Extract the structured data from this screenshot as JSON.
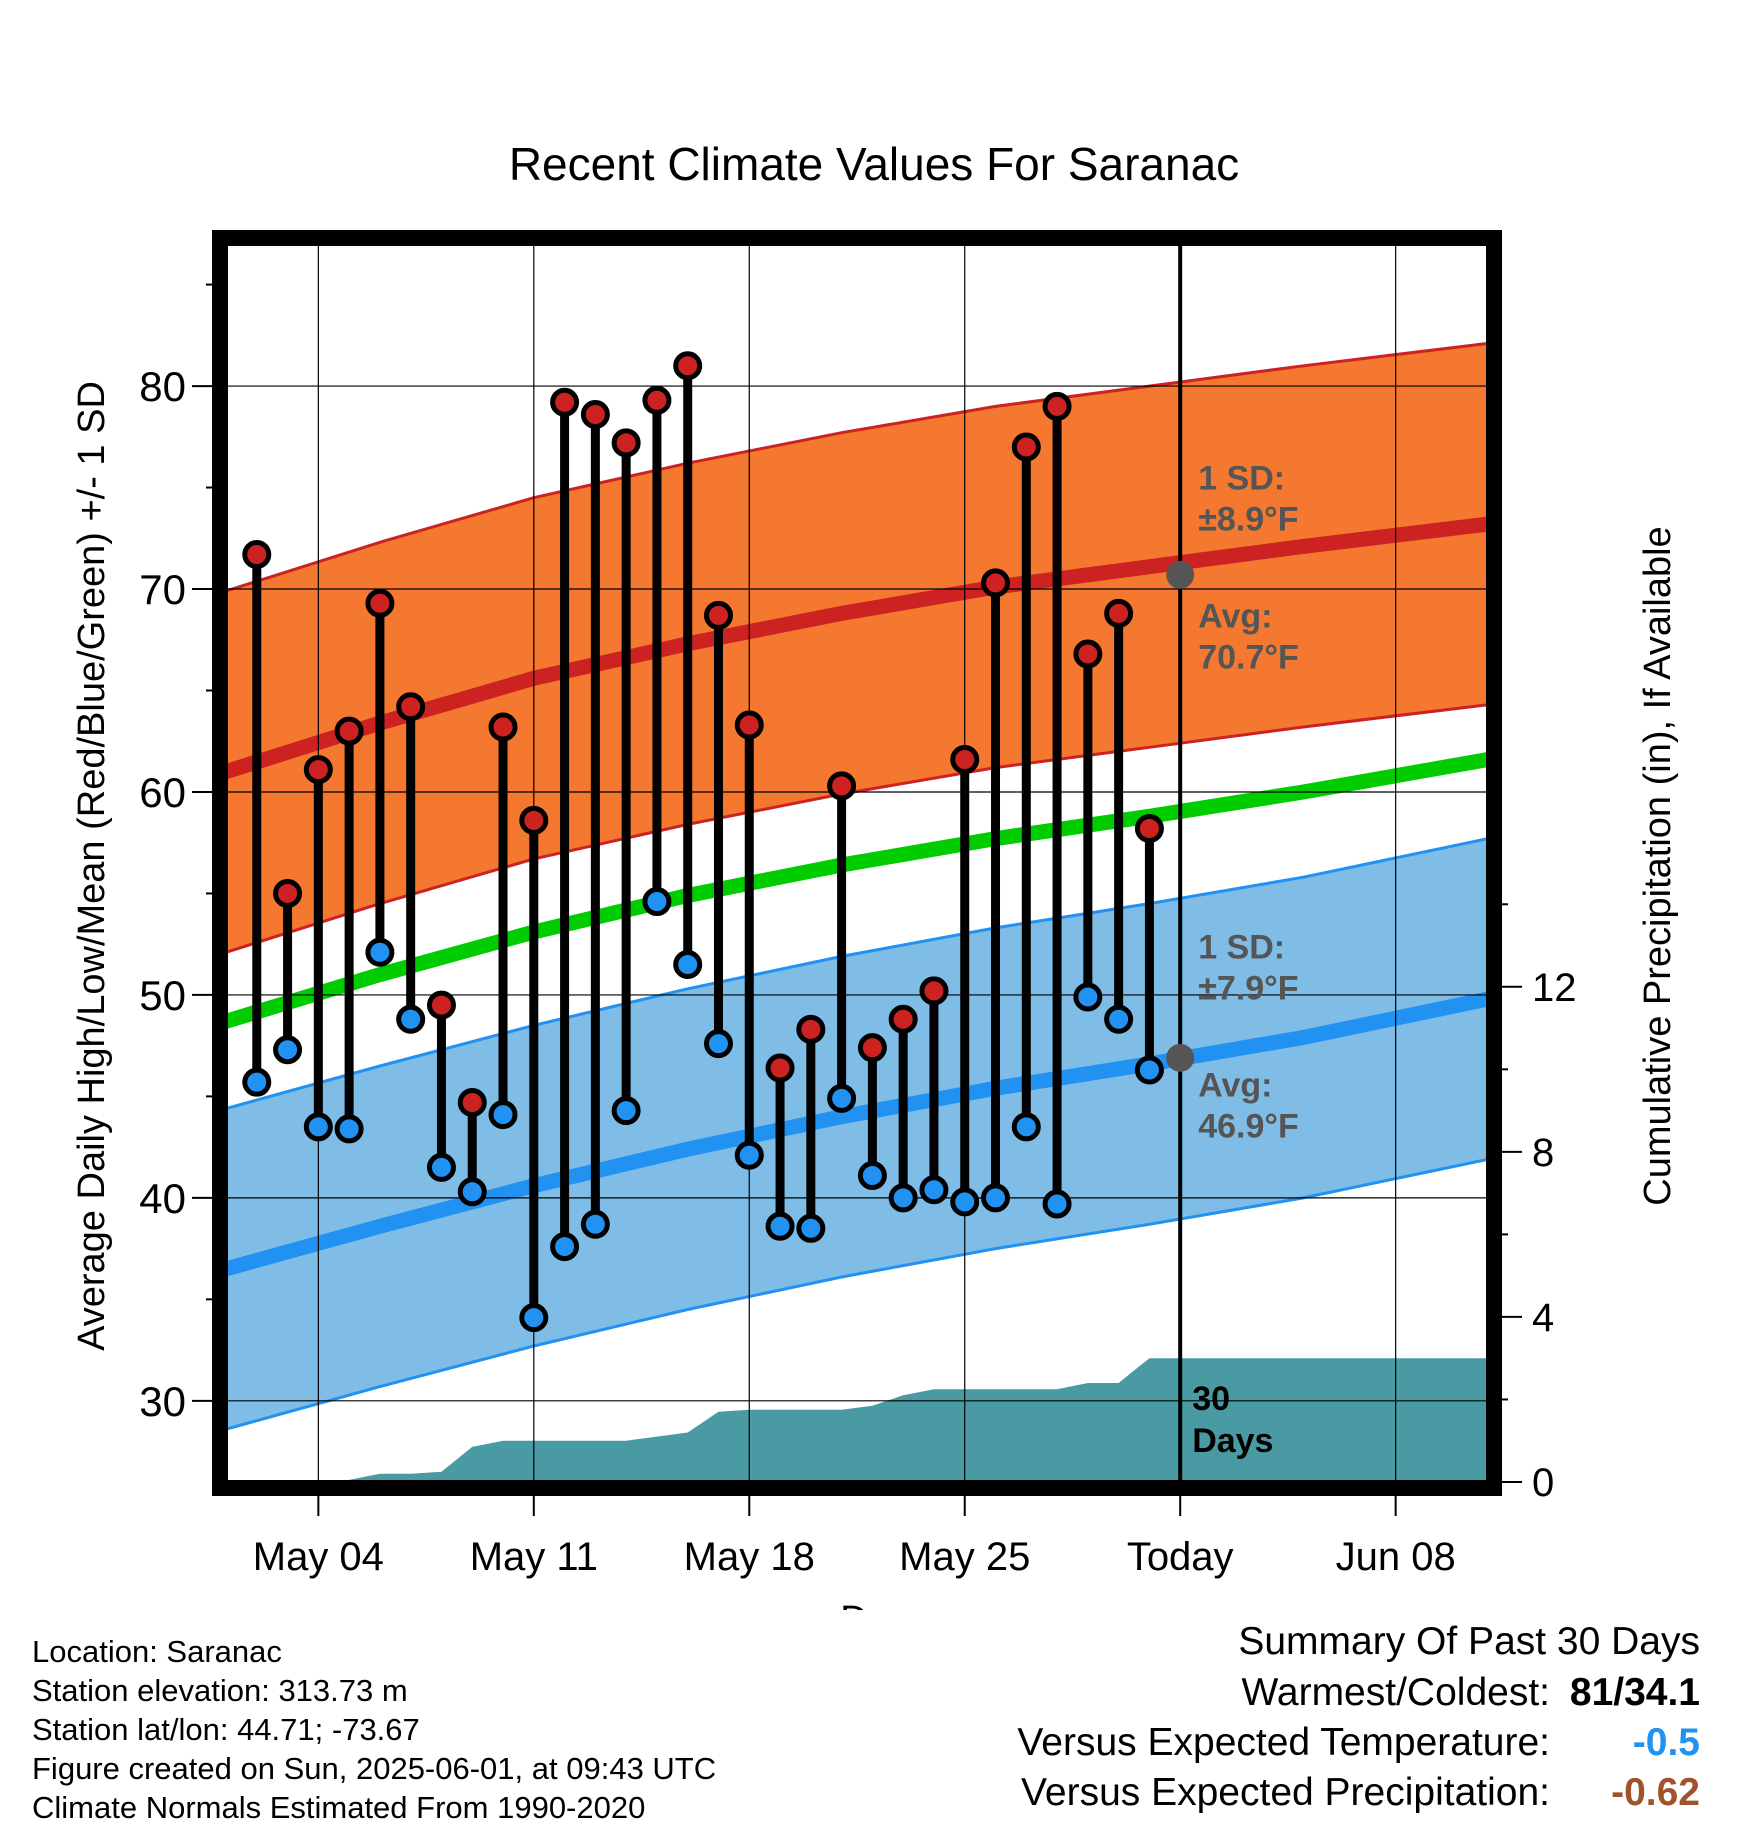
{
  "chart_data": {
    "type": "line",
    "title": "Recent Climate Values For Saranac",
    "xlabel": "Day",
    "ylabel": "Average Daily High/Low/Mean (Red/Blue/Green) +/- 1 SD",
    "y2label": "Cumulative Precipitation (in), If Available",
    "xlim": [
      "2025-05-01",
      "2025-06-11"
    ],
    "ylim": [
      26,
      87
    ],
    "y2lim": [
      0,
      30
    ],
    "x_ticks": [
      "May 04",
      "May 11",
      "May 18",
      "May 25",
      "Today",
      "Jun 08"
    ],
    "x_tick_dates": [
      "2025-05-04",
      "2025-05-11",
      "2025-05-18",
      "2025-05-25",
      "2025-06-01",
      "2025-06-08"
    ],
    "y_ticks": [
      "30",
      "40",
      "50",
      "60",
      "70",
      "80"
    ],
    "y2_ticks": [
      "0",
      "4",
      "8",
      "12"
    ],
    "grid": true,
    "today": "2025-06-01",
    "today_label": [
      "30",
      "Days"
    ],
    "normals": {
      "dates": [
        "2025-05-01",
        "2025-05-06",
        "2025-05-11",
        "2025-05-16",
        "2025-05-21",
        "2025-05-26",
        "2025-05-31",
        "2025-06-05",
        "2025-06-11"
      ],
      "high_mean": [
        61.0,
        63.4,
        65.6,
        67.3,
        68.8,
        70.1,
        71.1,
        72.1,
        73.2
      ],
      "high_sd": 8.9,
      "low_mean": [
        36.5,
        38.6,
        40.6,
        42.4,
        44.0,
        45.4,
        46.6,
        47.9,
        49.8
      ],
      "low_sd": 7.9,
      "mean": [
        48.7,
        51.0,
        53.1,
        54.9,
        56.4,
        57.7,
        58.8,
        60.0,
        61.6
      ]
    },
    "band_labels": {
      "high_sd": [
        "1 SD:",
        "±8.9°F"
      ],
      "high_avg": [
        "Avg:",
        "70.7°F"
      ],
      "low_sd": [
        "1 SD:",
        "±7.9°F"
      ],
      "low_avg": [
        "Avg:",
        "46.9°F"
      ]
    },
    "today_markers": {
      "high": 70.7,
      "low": 46.9
    },
    "series": [
      {
        "name": "High",
        "x": [
          "2025-05-02",
          "2025-05-03",
          "2025-05-04",
          "2025-05-05",
          "2025-05-06",
          "2025-05-07",
          "2025-05-08",
          "2025-05-09",
          "2025-05-10",
          "2025-05-11",
          "2025-05-12",
          "2025-05-13",
          "2025-05-14",
          "2025-05-15",
          "2025-05-16",
          "2025-05-17",
          "2025-05-18",
          "2025-05-19",
          "2025-05-20",
          "2025-05-21",
          "2025-05-22",
          "2025-05-23",
          "2025-05-24",
          "2025-05-25",
          "2025-05-26",
          "2025-05-27",
          "2025-05-28",
          "2025-05-29",
          "2025-05-30",
          "2025-05-31"
        ],
        "values": [
          71.7,
          55.0,
          61.1,
          63.0,
          69.3,
          64.2,
          49.5,
          44.7,
          63.2,
          58.6,
          79.2,
          78.6,
          77.2,
          79.3,
          81.0,
          68.7,
          63.3,
          46.4,
          48.3,
          60.3,
          47.4,
          48.8,
          50.2,
          61.6,
          70.3,
          77.0,
          79.0,
          66.8,
          68.8,
          58.2
        ]
      },
      {
        "name": "Low",
        "x": [
          "2025-05-02",
          "2025-05-03",
          "2025-05-04",
          "2025-05-05",
          "2025-05-06",
          "2025-05-07",
          "2025-05-08",
          "2025-05-09",
          "2025-05-10",
          "2025-05-11",
          "2025-05-12",
          "2025-05-13",
          "2025-05-14",
          "2025-05-15",
          "2025-05-16",
          "2025-05-17",
          "2025-05-18",
          "2025-05-19",
          "2025-05-20",
          "2025-05-21",
          "2025-05-22",
          "2025-05-23",
          "2025-05-24",
          "2025-05-25",
          "2025-05-26",
          "2025-05-27",
          "2025-05-28",
          "2025-05-29",
          "2025-05-30",
          "2025-05-31"
        ],
        "values": [
          45.7,
          47.3,
          43.5,
          43.4,
          52.1,
          48.8,
          41.5,
          40.3,
          44.1,
          34.1,
          37.6,
          38.7,
          44.3,
          54.6,
          51.5,
          47.6,
          42.1,
          38.6,
          38.5,
          44.9,
          41.1,
          40.0,
          40.4,
          39.8,
          40.0,
          43.5,
          39.7,
          49.9,
          48.8,
          46.3
        ]
      }
    ],
    "precipitation": {
      "x": [
        "2025-05-01",
        "2025-05-02",
        "2025-05-03",
        "2025-05-04",
        "2025-05-05",
        "2025-05-06",
        "2025-05-07",
        "2025-05-08",
        "2025-05-09",
        "2025-05-10",
        "2025-05-11",
        "2025-05-12",
        "2025-05-13",
        "2025-05-14",
        "2025-05-15",
        "2025-05-16",
        "2025-05-17",
        "2025-05-18",
        "2025-05-19",
        "2025-05-20",
        "2025-05-21",
        "2025-05-22",
        "2025-05-23",
        "2025-05-24",
        "2025-05-25",
        "2025-05-26",
        "2025-05-27",
        "2025-05-28",
        "2025-05-29",
        "2025-05-30",
        "2025-05-31",
        "2025-06-01",
        "2025-06-11"
      ],
      "values": [
        0,
        0,
        0,
        0,
        0.05,
        0.2,
        0.2,
        0.25,
        0.85,
        1.0,
        1.0,
        1.0,
        1.0,
        1.0,
        1.1,
        1.2,
        1.7,
        1.75,
        1.75,
        1.75,
        1.75,
        1.85,
        2.1,
        2.25,
        2.25,
        2.25,
        2.25,
        2.25,
        2.4,
        2.4,
        3.0,
        3.0,
        3.0
      ]
    },
    "colors": {
      "high_band": "#f4782f",
      "high_line": "#cc2222",
      "low_band": "#7fbde6",
      "low_line": "#2191f2",
      "mean_line": "#00cc00",
      "precip": "#4a9aa3",
      "high_marker": "#cc2222",
      "low_marker": "#2191f2",
      "label_text": "#555555"
    }
  },
  "footer": {
    "location": "Location: Saranac",
    "elevation": "Station elevation: 313.73 m",
    "latlon": "Station lat/lon: 44.71; -73.67",
    "created": "Figure created on Sun, 2025-06-01, at 09:43 UTC",
    "normals": "Climate Normals Estimated From 1990-2020"
  },
  "summary": {
    "title": "Summary Of Past 30 Days",
    "warmest_label": "Warmest/Coldest:",
    "warmest_value": "81/34.1",
    "temp_label": "Versus Expected Temperature:",
    "temp_value": "-0.5",
    "temp_color": "#2191f2",
    "precip_label": "Versus Expected Precipitation:",
    "precip_value": "-0.62",
    "precip_color": "#a0522d"
  }
}
